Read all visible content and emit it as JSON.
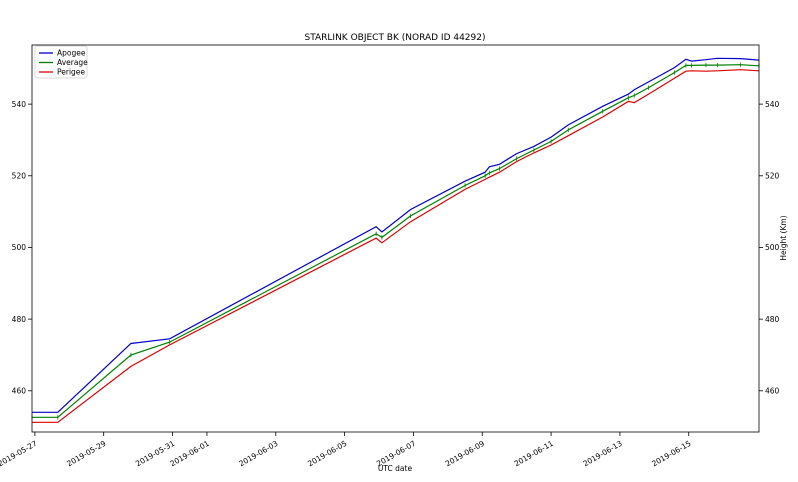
{
  "chart_data": {
    "type": "line",
    "title": "STARLINK OBJECT BK (NORAD ID 44292)",
    "xlabel": "UTC date",
    "ylabel_right": "Height (Km)",
    "x_range": [
      "2019-05-26T22:00",
      "2019-06-17T01:00"
    ],
    "ylim": [
      448.5,
      556.5
    ],
    "x_ticks": [
      "2019-05-27",
      "2019-05-29",
      "2019-05-31",
      "2019-06-01",
      "2019-06-03",
      "2019-06-05",
      "2019-06-07",
      "2019-06-09",
      "2019-06-11",
      "2019-06-13",
      "2019-06-15"
    ],
    "y_ticks": [
      460,
      480,
      500,
      520,
      540
    ],
    "grid": false,
    "legend_position": "top-left",
    "series": [
      {
        "name": "Apogee",
        "color": "#0000cc",
        "points": [
          [
            "2019-05-26T22:00",
            454.0
          ],
          [
            "2019-05-27T16:00",
            454.0
          ],
          [
            "2019-05-29T19:00",
            473.2
          ],
          [
            "2019-05-30T22:00",
            474.5
          ],
          [
            "2019-06-05T22:00",
            505.8
          ],
          [
            "2019-06-06T02:00",
            504.3
          ],
          [
            "2019-06-06T22:00",
            510.6
          ],
          [
            "2019-06-08T12:00",
            518.5
          ],
          [
            "2019-06-09T02:00",
            521.0
          ],
          [
            "2019-06-09T05:00",
            522.5
          ],
          [
            "2019-06-09T12:00",
            523.2
          ],
          [
            "2019-06-10T00:00",
            526.2
          ],
          [
            "2019-06-10T12:00",
            528.2
          ],
          [
            "2019-06-11T00:00",
            530.8
          ],
          [
            "2019-06-11T12:00",
            534.2
          ],
          [
            "2019-06-12T12:00",
            539.4
          ],
          [
            "2019-06-13T06:00",
            542.8
          ],
          [
            "2019-06-13T10:00",
            544.0
          ],
          [
            "2019-06-13T20:00",
            546.2
          ],
          [
            "2019-06-14T14:00",
            550.2
          ],
          [
            "2019-06-14T22:00",
            552.5
          ],
          [
            "2019-06-15T02:00",
            552.0
          ],
          [
            "2019-06-15T12:00",
            552.4
          ],
          [
            "2019-06-15T20:00",
            552.8
          ],
          [
            "2019-06-16T12:00",
            552.7
          ],
          [
            "2019-06-17T01:00",
            552.3
          ]
        ]
      },
      {
        "name": "Average",
        "color": "#008000",
        "points": [
          [
            "2019-05-26T22:00",
            452.6
          ],
          [
            "2019-05-27T16:00",
            452.6
          ],
          [
            "2019-05-29T19:00",
            470.0
          ],
          [
            "2019-05-30T22:00",
            473.6
          ],
          [
            "2019-06-05T22:00",
            503.8
          ],
          [
            "2019-06-06T02:00",
            502.8
          ],
          [
            "2019-06-06T22:00",
            508.8
          ],
          [
            "2019-06-08T12:00",
            517.3
          ],
          [
            "2019-06-09T02:00",
            520.0
          ],
          [
            "2019-06-09T05:00",
            520.8
          ],
          [
            "2019-06-09T12:00",
            522.0
          ],
          [
            "2019-06-10T00:00",
            524.8
          ],
          [
            "2019-06-10T12:00",
            527.2
          ],
          [
            "2019-06-11T00:00",
            529.6
          ],
          [
            "2019-06-11T12:00",
            532.8
          ],
          [
            "2019-06-12T12:00",
            538.0
          ],
          [
            "2019-06-13T06:00",
            541.8
          ],
          [
            "2019-06-13T10:00",
            542.4
          ],
          [
            "2019-06-13T20:00",
            544.6
          ],
          [
            "2019-06-14T14:00",
            548.8
          ],
          [
            "2019-06-14T22:00",
            550.8
          ],
          [
            "2019-06-15T02:00",
            550.8
          ],
          [
            "2019-06-15T12:00",
            550.9
          ],
          [
            "2019-06-15T20:00",
            550.9
          ],
          [
            "2019-06-16T12:00",
            551.0
          ],
          [
            "2019-06-17T01:00",
            550.7
          ]
        ]
      },
      {
        "name": "Perigee",
        "color": "#dd0000",
        "points": [
          [
            "2019-05-26T22:00",
            451.2
          ],
          [
            "2019-05-27T16:00",
            451.2
          ],
          [
            "2019-05-29T19:00",
            466.8
          ],
          [
            "2019-05-30T22:00",
            472.8
          ],
          [
            "2019-06-05T22:00",
            502.6
          ],
          [
            "2019-06-06T02:00",
            501.3
          ],
          [
            "2019-06-06T22:00",
            507.2
          ],
          [
            "2019-06-08T12:00",
            516.2
          ],
          [
            "2019-06-09T02:00",
            519.0
          ],
          [
            "2019-06-09T05:00",
            519.6
          ],
          [
            "2019-06-09T12:00",
            521.0
          ],
          [
            "2019-06-10T00:00",
            524.0
          ],
          [
            "2019-06-10T12:00",
            526.4
          ],
          [
            "2019-06-11T00:00",
            528.6
          ],
          [
            "2019-06-11T12:00",
            531.2
          ],
          [
            "2019-06-12T12:00",
            536.4
          ],
          [
            "2019-06-13T06:00",
            540.8
          ],
          [
            "2019-06-13T10:00",
            540.4
          ],
          [
            "2019-06-13T20:00",
            542.8
          ],
          [
            "2019-06-14T14:00",
            547.2
          ],
          [
            "2019-06-14T22:00",
            549.2
          ],
          [
            "2019-06-15T02:00",
            549.3
          ],
          [
            "2019-06-15T12:00",
            549.2
          ],
          [
            "2019-06-15T20:00",
            549.3
          ],
          [
            "2019-06-16T12:00",
            549.6
          ],
          [
            "2019-06-17T01:00",
            549.3
          ]
        ]
      }
    ]
  }
}
